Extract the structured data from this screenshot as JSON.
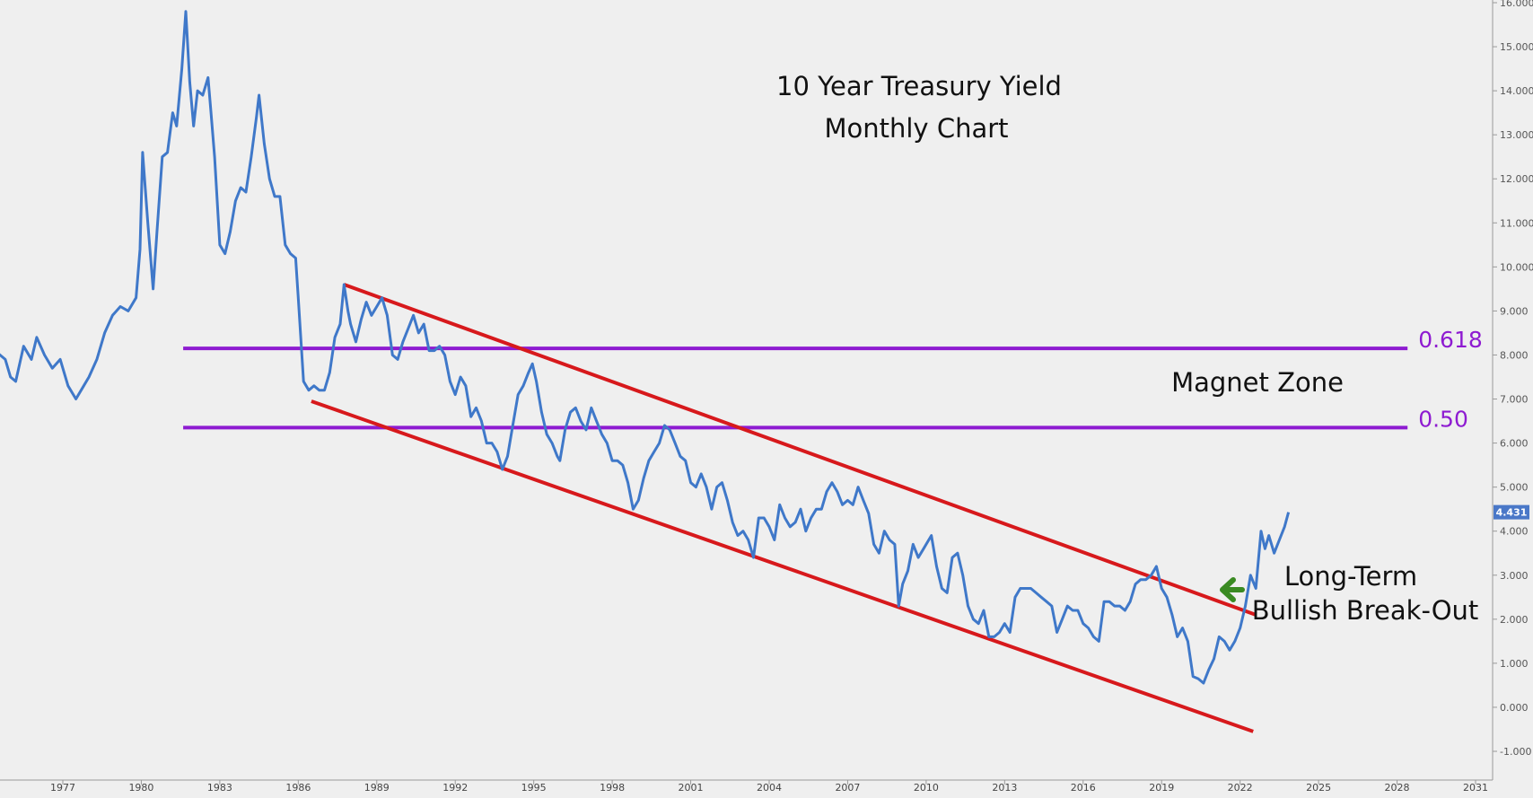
{
  "chart_data": {
    "type": "line",
    "title": "10 Year Treasury Yield",
    "subtitle": "Monthly Chart",
    "xlabel": "",
    "ylabel": "",
    "xlim": [
      1974.5,
      2033
    ],
    "ylim": [
      -1.5,
      16
    ],
    "grid": false,
    "y_ticks": [
      "-1.000",
      "0.000",
      "1.000",
      "2.000",
      "3.000",
      "4.000",
      "5.000",
      "6.000",
      "7.000",
      "8.000",
      "9.000",
      "10.000",
      "11.000",
      "12.000",
      "13.000",
      "14.000",
      "15.000",
      "16.000"
    ],
    "y_tick_values": [
      -1,
      0,
      1,
      2,
      3,
      4,
      5,
      6,
      7,
      8,
      9,
      10,
      11,
      12,
      13,
      14,
      15,
      16
    ],
    "x_ticks": [
      "1977",
      "1980",
      "1983",
      "1986",
      "1989",
      "1992",
      "1995",
      "1998",
      "2001",
      "2004",
      "2007",
      "2010",
      "2013",
      "2016",
      "2019",
      "2022",
      "2025",
      "2028",
      "2031"
    ],
    "x_tick_values": [
      1977,
      1980,
      1983,
      1986,
      1989,
      1992,
      1995,
      1998,
      2001,
      2004,
      2007,
      2010,
      2013,
      2016,
      2019,
      2022,
      2025,
      2028,
      2031
    ],
    "last_value_label": "4.431",
    "series": [
      {
        "name": "",
        "color": "#3f78c9",
        "points": [
          [
            1974.5,
            8.05
          ],
          [
            1974.8,
            7.9
          ],
          [
            1975.0,
            7.5
          ],
          [
            1975.2,
            7.4
          ],
          [
            1975.5,
            8.2
          ],
          [
            1975.8,
            7.9
          ],
          [
            1976.0,
            8.4
          ],
          [
            1976.3,
            8.0
          ],
          [
            1976.6,
            7.7
          ],
          [
            1976.9,
            7.9
          ],
          [
            1977.2,
            7.3
          ],
          [
            1977.5,
            7.0
          ],
          [
            1977.8,
            7.3
          ],
          [
            1978.0,
            7.5
          ],
          [
            1978.3,
            7.9
          ],
          [
            1978.6,
            8.5
          ],
          [
            1978.9,
            8.9
          ],
          [
            1979.2,
            9.1
          ],
          [
            1979.5,
            9.0
          ],
          [
            1979.8,
            9.3
          ],
          [
            1979.95,
            10.4
          ],
          [
            1980.05,
            12.6
          ],
          [
            1980.25,
            11.0
          ],
          [
            1980.45,
            9.5
          ],
          [
            1980.6,
            10.8
          ],
          [
            1980.8,
            12.5
          ],
          [
            1981.0,
            12.6
          ],
          [
            1981.2,
            13.5
          ],
          [
            1981.35,
            13.2
          ],
          [
            1981.55,
            14.5
          ],
          [
            1981.7,
            15.8
          ],
          [
            1981.85,
            14.2
          ],
          [
            1982.0,
            13.2
          ],
          [
            1982.15,
            14.0
          ],
          [
            1982.35,
            13.9
          ],
          [
            1982.55,
            14.3
          ],
          [
            1982.65,
            13.6
          ],
          [
            1982.8,
            12.5
          ],
          [
            1983.0,
            10.5
          ],
          [
            1983.2,
            10.3
          ],
          [
            1983.4,
            10.8
          ],
          [
            1983.6,
            11.5
          ],
          [
            1983.8,
            11.8
          ],
          [
            1984.0,
            11.7
          ],
          [
            1984.2,
            12.5
          ],
          [
            1984.4,
            13.4
          ],
          [
            1984.5,
            13.9
          ],
          [
            1984.7,
            12.8
          ],
          [
            1984.9,
            12.0
          ],
          [
            1985.1,
            11.6
          ],
          [
            1985.3,
            11.6
          ],
          [
            1985.5,
            10.5
          ],
          [
            1985.7,
            10.3
          ],
          [
            1985.9,
            10.2
          ],
          [
            1986.0,
            9.3
          ],
          [
            1986.2,
            7.4
          ],
          [
            1986.4,
            7.2
          ],
          [
            1986.6,
            7.3
          ],
          [
            1986.8,
            7.2
          ],
          [
            1987.0,
            7.2
          ],
          [
            1987.2,
            7.6
          ],
          [
            1987.4,
            8.4
          ],
          [
            1987.6,
            8.7
          ],
          [
            1987.75,
            9.6
          ],
          [
            1987.9,
            9.0
          ],
          [
            1988.0,
            8.7
          ],
          [
            1988.2,
            8.3
          ],
          [
            1988.4,
            8.8
          ],
          [
            1988.6,
            9.2
          ],
          [
            1988.8,
            8.9
          ],
          [
            1989.0,
            9.1
          ],
          [
            1989.2,
            9.3
          ],
          [
            1989.4,
            8.9
          ],
          [
            1989.6,
            8.0
          ],
          [
            1989.8,
            7.9
          ],
          [
            1990.0,
            8.3
          ],
          [
            1990.2,
            8.6
          ],
          [
            1990.4,
            8.9
          ],
          [
            1990.6,
            8.5
          ],
          [
            1990.8,
            8.7
          ],
          [
            1991.0,
            8.1
          ],
          [
            1991.2,
            8.1
          ],
          [
            1991.4,
            8.2
          ],
          [
            1991.6,
            8.0
          ],
          [
            1991.8,
            7.4
          ],
          [
            1992.0,
            7.1
          ],
          [
            1992.2,
            7.5
          ],
          [
            1992.4,
            7.3
          ],
          [
            1992.6,
            6.6
          ],
          [
            1992.8,
            6.8
          ],
          [
            1993.0,
            6.5
          ],
          [
            1993.2,
            6.0
          ],
          [
            1993.4,
            6.0
          ],
          [
            1993.6,
            5.8
          ],
          [
            1993.8,
            5.4
          ],
          [
            1994.0,
            5.7
          ],
          [
            1994.2,
            6.4
          ],
          [
            1994.4,
            7.1
          ],
          [
            1994.6,
            7.3
          ],
          [
            1994.8,
            7.6
          ],
          [
            1994.95,
            7.8
          ],
          [
            1995.1,
            7.4
          ],
          [
            1995.3,
            6.7
          ],
          [
            1995.5,
            6.2
          ],
          [
            1995.7,
            6.0
          ],
          [
            1995.9,
            5.7
          ],
          [
            1996.0,
            5.6
          ],
          [
            1996.2,
            6.3
          ],
          [
            1996.4,
            6.7
          ],
          [
            1996.6,
            6.8
          ],
          [
            1996.8,
            6.5
          ],
          [
            1997.0,
            6.3
          ],
          [
            1997.2,
            6.8
          ],
          [
            1997.4,
            6.5
          ],
          [
            1997.6,
            6.2
          ],
          [
            1997.8,
            6.0
          ],
          [
            1998.0,
            5.6
          ],
          [
            1998.2,
            5.6
          ],
          [
            1998.4,
            5.5
          ],
          [
            1998.6,
            5.1
          ],
          [
            1998.8,
            4.5
          ],
          [
            1999.0,
            4.7
          ],
          [
            1999.2,
            5.2
          ],
          [
            1999.4,
            5.6
          ],
          [
            1999.6,
            5.8
          ],
          [
            1999.8,
            6.0
          ],
          [
            2000.0,
            6.4
          ],
          [
            2000.2,
            6.3
          ],
          [
            2000.4,
            6.0
          ],
          [
            2000.6,
            5.7
          ],
          [
            2000.8,
            5.6
          ],
          [
            2001.0,
            5.1
          ],
          [
            2001.2,
            5.0
          ],
          [
            2001.4,
            5.3
          ],
          [
            2001.6,
            5.0
          ],
          [
            2001.8,
            4.5
          ],
          [
            2002.0,
            5.0
          ],
          [
            2002.2,
            5.1
          ],
          [
            2002.4,
            4.7
          ],
          [
            2002.6,
            4.2
          ],
          [
            2002.8,
            3.9
          ],
          [
            2003.0,
            4.0
          ],
          [
            2003.2,
            3.8
          ],
          [
            2003.4,
            3.4
          ],
          [
            2003.6,
            4.3
          ],
          [
            2003.8,
            4.3
          ],
          [
            2004.0,
            4.1
          ],
          [
            2004.2,
            3.8
          ],
          [
            2004.4,
            4.6
          ],
          [
            2004.6,
            4.3
          ],
          [
            2004.8,
            4.1
          ],
          [
            2005.0,
            4.2
          ],
          [
            2005.2,
            4.5
          ],
          [
            2005.4,
            4.0
          ],
          [
            2005.6,
            4.3
          ],
          [
            2005.8,
            4.5
          ],
          [
            2006.0,
            4.5
          ],
          [
            2006.2,
            4.9
          ],
          [
            2006.4,
            5.1
          ],
          [
            2006.6,
            4.9
          ],
          [
            2006.8,
            4.6
          ],
          [
            2007.0,
            4.7
          ],
          [
            2007.2,
            4.6
          ],
          [
            2007.4,
            5.0
          ],
          [
            2007.6,
            4.7
          ],
          [
            2007.8,
            4.4
          ],
          [
            2008.0,
            3.7
          ],
          [
            2008.2,
            3.5
          ],
          [
            2008.4,
            4.0
          ],
          [
            2008.6,
            3.8
          ],
          [
            2008.8,
            3.7
          ],
          [
            2008.95,
            2.3
          ],
          [
            2009.1,
            2.8
          ],
          [
            2009.3,
            3.1
          ],
          [
            2009.5,
            3.7
          ],
          [
            2009.7,
            3.4
          ],
          [
            2009.9,
            3.6
          ],
          [
            2010.0,
            3.7
          ],
          [
            2010.2,
            3.9
          ],
          [
            2010.4,
            3.2
          ],
          [
            2010.6,
            2.7
          ],
          [
            2010.8,
            2.6
          ],
          [
            2011.0,
            3.4
          ],
          [
            2011.2,
            3.5
          ],
          [
            2011.4,
            3.0
          ],
          [
            2011.6,
            2.3
          ],
          [
            2011.8,
            2.0
          ],
          [
            2012.0,
            1.9
          ],
          [
            2012.2,
            2.2
          ],
          [
            2012.4,
            1.6
          ],
          [
            2012.6,
            1.6
          ],
          [
            2012.8,
            1.7
          ],
          [
            2013.0,
            1.9
          ],
          [
            2013.2,
            1.7
          ],
          [
            2013.4,
            2.5
          ],
          [
            2013.6,
            2.7
          ],
          [
            2013.8,
            2.7
          ],
          [
            2014.0,
            2.7
          ],
          [
            2014.2,
            2.6
          ],
          [
            2014.4,
            2.5
          ],
          [
            2014.6,
            2.4
          ],
          [
            2014.8,
            2.3
          ],
          [
            2015.0,
            1.7
          ],
          [
            2015.2,
            2.0
          ],
          [
            2015.4,
            2.3
          ],
          [
            2015.6,
            2.2
          ],
          [
            2015.8,
            2.2
          ],
          [
            2016.0,
            1.9
          ],
          [
            2016.2,
            1.8
          ],
          [
            2016.4,
            1.6
          ],
          [
            2016.6,
            1.5
          ],
          [
            2016.8,
            2.4
          ],
          [
            2017.0,
            2.4
          ],
          [
            2017.2,
            2.3
          ],
          [
            2017.4,
            2.3
          ],
          [
            2017.6,
            2.2
          ],
          [
            2017.8,
            2.4
          ],
          [
            2018.0,
            2.8
          ],
          [
            2018.2,
            2.9
          ],
          [
            2018.4,
            2.9
          ],
          [
            2018.6,
            3.0
          ],
          [
            2018.8,
            3.2
          ],
          [
            2019.0,
            2.7
          ],
          [
            2019.2,
            2.5
          ],
          [
            2019.4,
            2.1
          ],
          [
            2019.6,
            1.6
          ],
          [
            2019.8,
            1.8
          ],
          [
            2020.0,
            1.5
          ],
          [
            2020.2,
            0.7
          ],
          [
            2020.4,
            0.65
          ],
          [
            2020.6,
            0.55
          ],
          [
            2020.8,
            0.85
          ],
          [
            2021.0,
            1.1
          ],
          [
            2021.2,
            1.6
          ],
          [
            2021.4,
            1.5
          ],
          [
            2021.6,
            1.3
          ],
          [
            2021.8,
            1.5
          ],
          [
            2022.0,
            1.8
          ],
          [
            2022.2,
            2.3
          ],
          [
            2022.4,
            3.0
          ],
          [
            2022.6,
            2.7
          ],
          [
            2022.8,
            4.0
          ],
          [
            2022.95,
            3.6
          ],
          [
            2023.1,
            3.9
          ],
          [
            2023.3,
            3.5
          ],
          [
            2023.5,
            3.8
          ],
          [
            2023.7,
            4.1
          ],
          [
            2023.85,
            4.43
          ]
        ]
      }
    ],
    "annotations": {
      "channel_upper": {
        "color": "#d7191c",
        "from": [
          1987.75,
          9.6
        ],
        "to": [
          2022.6,
          2.1
        ]
      },
      "channel_lower": {
        "color": "#d7191c",
        "from": [
          1986.5,
          6.95
        ],
        "to": [
          2022.5,
          -0.55
        ]
      },
      "fib_levels": [
        {
          "label": "0.618",
          "value": 8.15,
          "color": "#8e1bd1",
          "from": 1981.6,
          "to": 2028.4
        },
        {
          "label": "0.50",
          "value": 6.35,
          "color": "#8e1bd1",
          "from": 1981.6,
          "to": 2028.4
        }
      ],
      "magnet_zone_label": "Magnet Zone",
      "breakout_label_1": "Long-Term",
      "breakout_label_2": "Bullish Break-Out",
      "arrow_color": "#3a8a22"
    }
  }
}
